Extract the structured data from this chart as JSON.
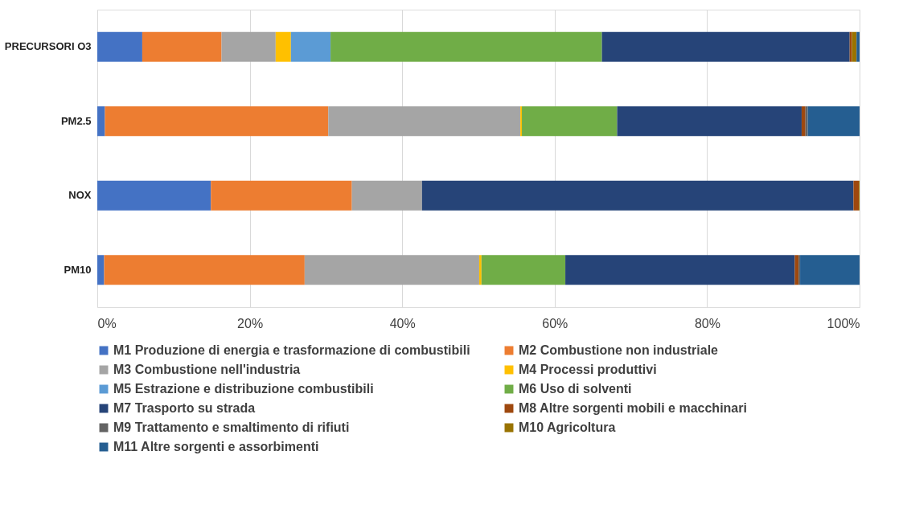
{
  "chart_data": {
    "type": "bar",
    "orientation": "horizontal",
    "stacked": true,
    "categories": [
      "PRECURSORI O3",
      "PM2.5",
      "NOX",
      "PM10"
    ],
    "series": [
      {
        "name": "M1 Produzione di energia e trasformazione di combustibili",
        "color": "#4472c4",
        "values": [
          5.9,
          1.0,
          14.9,
          0.9
        ]
      },
      {
        "name": "M2 Combustione non industriale",
        "color": "#ed7d31",
        "values": [
          10.4,
          29.3,
          18.5,
          26.3
        ]
      },
      {
        "name": "M3 Combustione nell'industria",
        "color": "#a5a5a5",
        "values": [
          7.1,
          25.2,
          9.2,
          22.9
        ]
      },
      {
        "name": "M4 Processi produttivi",
        "color": "#ffc000",
        "values": [
          2.0,
          0.2,
          null,
          0.3
        ]
      },
      {
        "name": "M5 Estrazione e distribuzione combustibili",
        "color": "#5b9bd5",
        "values": [
          5.2,
          null,
          null,
          null
        ]
      },
      {
        "name": "M6 Uso di solventi",
        "color": "#70ad47",
        "values": [
          35.6,
          12.5,
          null,
          11.0
        ]
      },
      {
        "name": "M7 Trasporto su strada",
        "color": "#264478",
        "values": [
          32.5,
          24.2,
          56.6,
          30.1
        ]
      },
      {
        "name": "M8 Altre sorgenti mobili e macchinari",
        "color": "#9e480e",
        "values": [
          0.3,
          0.5,
          0.7,
          0.5
        ]
      },
      {
        "name": "M9 Trattamento e smaltimento di rifiuti",
        "color": "#636363",
        "values": [
          null,
          0.3,
          null,
          0.2
        ]
      },
      {
        "name": "M10 Agricoltura",
        "color": "#997300",
        "values": [
          0.6,
          null,
          0.1,
          null
        ]
      },
      {
        "name": "M11 Altre sorgenti e assorbimenti",
        "color": "#255e91",
        "values": [
          0.4,
          6.8,
          null,
          7.8
        ]
      }
    ],
    "xlim": [
      0,
      100
    ],
    "xticks": [
      {
        "value": 0,
        "label": "0%"
      },
      {
        "value": 20,
        "label": "20%"
      },
      {
        "value": 40,
        "label": "40%"
      },
      {
        "value": 60,
        "label": "60%"
      },
      {
        "value": 80,
        "label": "80%"
      },
      {
        "value": 100,
        "label": "100%"
      }
    ],
    "grid": "x",
    "legend": "bottom"
  }
}
